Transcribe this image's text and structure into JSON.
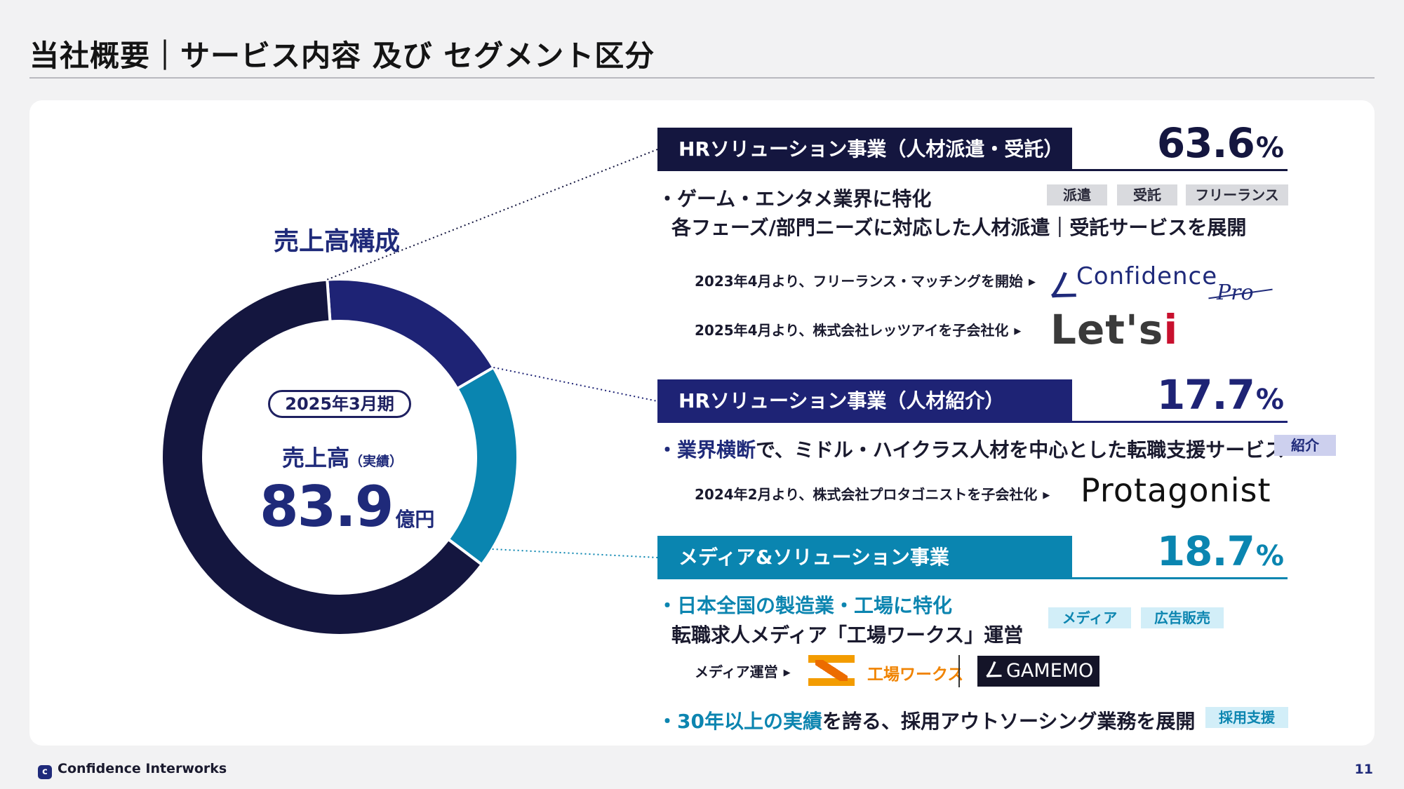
{
  "page": {
    "title": "当社概要｜サービス内容 及び セグメント区分",
    "footer_company": "Confidence Interworks",
    "page_number": "11"
  },
  "chart_data": {
    "type": "pie",
    "title": "売上高構成",
    "center": {
      "period": "2025年3月期",
      "label": "売上高",
      "label_sub": "（実績）",
      "value": "83.9",
      "unit": "億円"
    },
    "categories": [
      "HRソリューション事業（人材派遣・受託）",
      "HRソリューション事業（人材紹介）",
      "メディア&ソリューション事業"
    ],
    "values": [
      63.6,
      17.7,
      18.7
    ],
    "colors": [
      "#14163f",
      "#1e2375",
      "#0a85b0"
    ],
    "start_angle_deg": -4
  },
  "segments": [
    {
      "name": "HRソリューション事業（人材派遣・受託）",
      "pct_value": "63.6",
      "pct_sign": "%",
      "color": "#14163f",
      "bullet": {
        "prefix": "・",
        "highlight": "",
        "text": "ゲーム・エンタメ業界に特化"
      },
      "subline": "各フェーズ/部門ニーズに対応した人材派遣｜受託サービスを展開",
      "tags": [
        "派遣",
        "受託",
        "フリーランス"
      ],
      "notes": [
        "2023年4月より、フリーランス・マッチングを開始",
        "2025年4月より、株式会社レッツアイを子会社化"
      ],
      "logos": {
        "confidence_mark": "ㄥ",
        "confidence_word": "Confidence",
        "confidence_pro": "Pro",
        "letsi_main": "Let's",
        "letsi_i": "i"
      }
    },
    {
      "name": "HRソリューション事業（人材紹介）",
      "pct_value": "17.7",
      "pct_sign": "%",
      "color": "#1e2375",
      "bullet": {
        "prefix": "・",
        "highlight": "業界横断",
        "text": "で、ミドル・ハイクラス人材を中心とした転職支援サービス"
      },
      "tags": [
        "紹介"
      ],
      "notes": [
        "2024年2月より、株式会社プロタゴニストを子会社化"
      ],
      "logos": {
        "protagonist": "Protagonist"
      }
    },
    {
      "name": "メディア&ソリューション事業",
      "pct_value": "18.7",
      "pct_sign": "%",
      "color": "#0a85b0",
      "bullet": {
        "prefix": "・",
        "highlight": "日本全国の製造業・工場に特化",
        "text": ""
      },
      "subline": "転職求人メディア「工場ワークス」運営",
      "tags": [
        "メディア",
        "広告販売",
        "採用支援"
      ],
      "notes": [
        "メディア運営"
      ],
      "logos": {
        "kojo": "工場ワークス",
        "gamemo_mark": "ㄥ",
        "gamemo": "GAMEMO"
      },
      "bullet2": {
        "prefix": "・",
        "highlight": "30年以上の実績",
        "text": "を誇る、採用アウトソーシング業務を展開"
      }
    }
  ]
}
